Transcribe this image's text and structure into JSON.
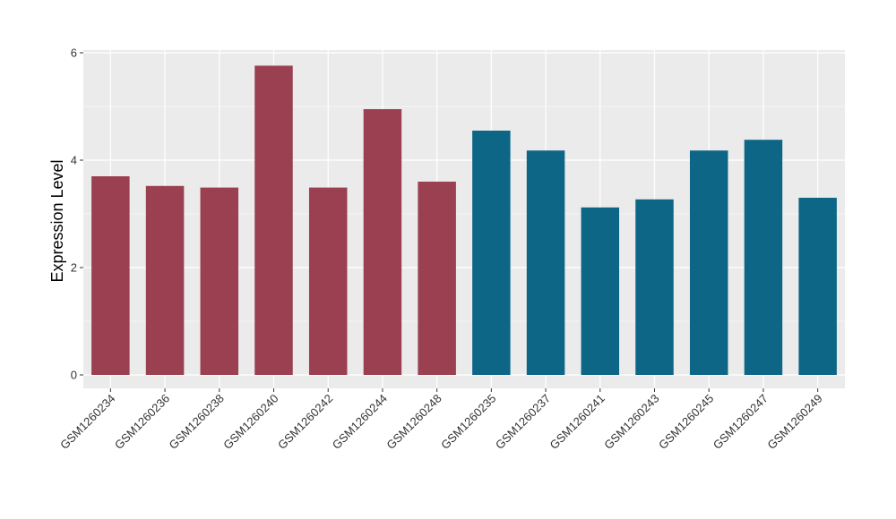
{
  "chart_data": {
    "type": "bar",
    "title": "",
    "xlabel": "",
    "ylabel": "Expression Level",
    "ylim": [
      -0.25,
      6.05
    ],
    "yticks": [
      0,
      2,
      4,
      6
    ],
    "grid": true,
    "categories": [
      "GSM1260234",
      "GSM1260236",
      "GSM1260238",
      "GSM1260240",
      "GSM1260242",
      "GSM1260244",
      "GSM1260248",
      "GSM1260235",
      "GSM1260237",
      "GSM1260241",
      "GSM1260243",
      "GSM1260245",
      "GSM1260247",
      "GSM1260249"
    ],
    "values": [
      3.7,
      3.52,
      3.49,
      5.76,
      3.49,
      4.95,
      3.6,
      4.55,
      4.18,
      3.12,
      3.27,
      4.18,
      4.38,
      3.3
    ],
    "bar_colors": [
      "#9A4050",
      "#9A4050",
      "#9A4050",
      "#9A4050",
      "#9A4050",
      "#9A4050",
      "#9A4050",
      "#0E6687",
      "#0E6687",
      "#0E6687",
      "#0E6687",
      "#0E6687",
      "#0E6687",
      "#0E6687"
    ],
    "panel_color": "#EBEBEB",
    "grid_color": "#FFFFFF"
  }
}
